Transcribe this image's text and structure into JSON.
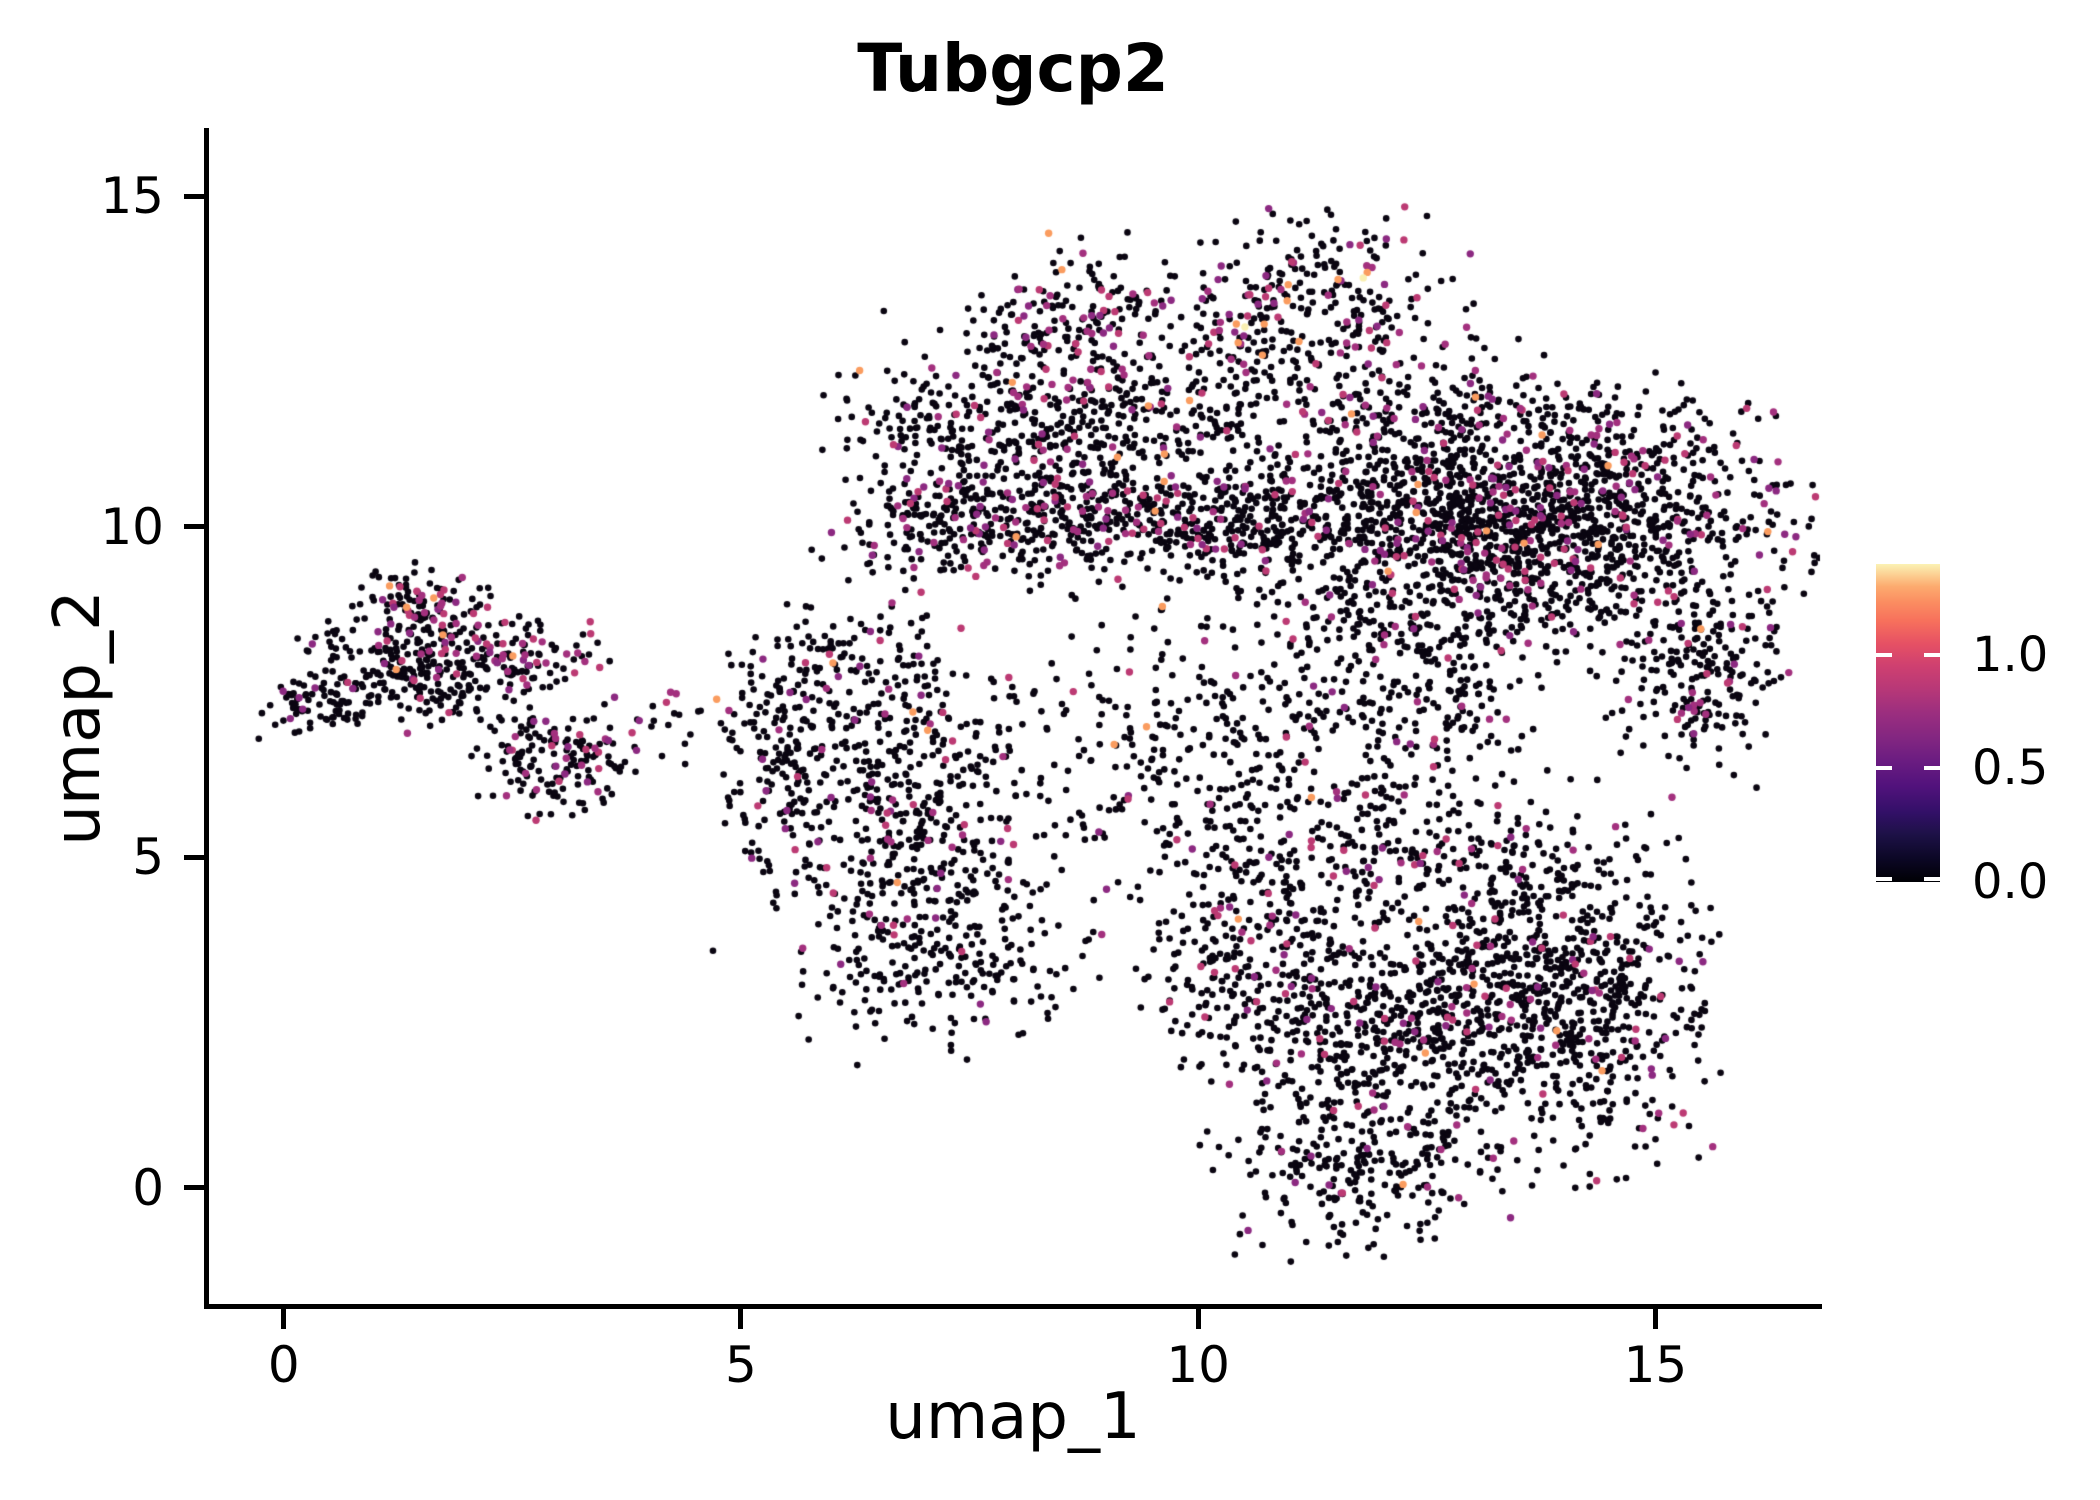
{
  "title": "Tubgcp2",
  "chart_data": {
    "type": "scatter",
    "title": "Tubgcp2",
    "xlabel": "umap_1",
    "ylabel": "umap_2",
    "xlim": [
      -0.85,
      16.8
    ],
    "ylim": [
      -1.8,
      16.0
    ],
    "xticks": [
      "0",
      "5",
      "10",
      "15"
    ],
    "xtick_values": [
      0,
      5,
      10,
      15
    ],
    "yticks": [
      "0",
      "5",
      "10",
      "15"
    ],
    "ytick_values": [
      0,
      5,
      10,
      15
    ],
    "grid": false,
    "legend_position": "right",
    "colorbar": {
      "ticks": [
        "0.0",
        "0.5",
        "1.0"
      ],
      "tick_values": [
        0.0,
        0.5,
        1.0
      ],
      "range": [
        0.0,
        1.4
      ],
      "colormap": "magma",
      "stops": [
        {
          "p": 0.0,
          "c": "#000004"
        },
        {
          "p": 0.07,
          "c": "#0b0724"
        },
        {
          "p": 0.15,
          "c": "#1d1147"
        },
        {
          "p": 0.22,
          "c": "#331068"
        },
        {
          "p": 0.3,
          "c": "#51127c"
        },
        {
          "p": 0.38,
          "c": "#6a1c81"
        },
        {
          "p": 0.45,
          "c": "#822681"
        },
        {
          "p": 0.53,
          "c": "#9b2e7f"
        },
        {
          "p": 0.6,
          "c": "#b53778"
        },
        {
          "p": 0.68,
          "c": "#cf4070"
        },
        {
          "p": 0.75,
          "c": "#e65164"
        },
        {
          "p": 0.82,
          "c": "#f7705c"
        },
        {
          "p": 0.88,
          "c": "#fb8d61"
        },
        {
          "p": 0.93,
          "c": "#fcab6f"
        },
        {
          "p": 1.0,
          "c": "#fbf2b4"
        }
      ]
    },
    "palette": {
      "zero_expression": "#0a0511",
      "mid_expression": [
        "#8c2981",
        "#a3307e",
        "#bc3a73"
      ],
      "high_expression": "#fa9c5f",
      "top_expression": "#f9efb2"
    },
    "point_radius_px": 3.3,
    "seed": 1337,
    "clusters": [
      {
        "name": "left-tip",
        "cx": 0.38,
        "cy": 7.3,
        "sx": 0.28,
        "sy": 0.22,
        "n": 70,
        "fm": 0.14,
        "fh": 0.0
      },
      {
        "name": "left-main",
        "cx": 1.15,
        "cy": 7.9,
        "sx": 0.45,
        "sy": 0.4,
        "n": 150,
        "fm": 0.1,
        "fh": 0.005
      },
      {
        "name": "left-top-arm",
        "cx": 1.55,
        "cy": 8.75,
        "sx": 0.35,
        "sy": 0.3,
        "n": 110,
        "fm": 0.22,
        "fh": 0.05
      },
      {
        "name": "left-right-arm",
        "cx": 2.45,
        "cy": 8.1,
        "sx": 0.5,
        "sy": 0.25,
        "n": 120,
        "fm": 0.25,
        "fh": 0.008
      },
      {
        "name": "left-lower-lobe",
        "cx": 3.0,
        "cy": 6.45,
        "sx": 0.42,
        "sy": 0.38,
        "n": 160,
        "fm": 0.12,
        "fh": 0.004
      },
      {
        "name": "left-bridge",
        "cx": 1.9,
        "cy": 7.5,
        "sx": 0.5,
        "sy": 0.3,
        "n": 80,
        "fm": 0.08,
        "fh": 0.0
      },
      {
        "name": "left-sparse-tail",
        "cx": 3.9,
        "cy": 7.1,
        "sx": 0.4,
        "sy": 0.3,
        "n": 14,
        "fm": 0.15,
        "fh": 0.0
      },
      {
        "name": "left-ne-dots",
        "cx": 4.35,
        "cy": 6.9,
        "sx": 0.25,
        "sy": 0.3,
        "n": 6,
        "fm": 0.1,
        "fh": 0.0
      },
      {
        "name": "midleft-west-edge",
        "cx": 5.45,
        "cy": 6.6,
        "sx": 0.3,
        "sy": 1.0,
        "n": 130,
        "fm": 0.12,
        "fh": 0.004
      },
      {
        "name": "midleft-main",
        "cx": 6.7,
        "cy": 5.9,
        "sx": 0.85,
        "sy": 1.05,
        "n": 430,
        "fm": 0.07,
        "fh": 0.005
      },
      {
        "name": "midleft-north",
        "cx": 6.2,
        "cy": 7.9,
        "sx": 0.55,
        "sy": 0.45,
        "n": 90,
        "fm": 0.1,
        "fh": 0.0
      },
      {
        "name": "midleft-south",
        "cx": 7.2,
        "cy": 3.6,
        "sx": 0.75,
        "sy": 0.75,
        "n": 260,
        "fm": 0.07,
        "fh": 0.003
      },
      {
        "name": "topmid-peak",
        "cx": 8.7,
        "cy": 13.1,
        "sx": 0.6,
        "sy": 0.6,
        "n": 170,
        "fm": 0.2,
        "fh": 0.03
      },
      {
        "name": "topmid-main",
        "cx": 8.4,
        "cy": 11.5,
        "sx": 1.05,
        "sy": 0.75,
        "n": 480,
        "fm": 0.13,
        "fh": 0.015
      },
      {
        "name": "topmid-band",
        "cx": 8.5,
        "cy": 10.0,
        "sx": 1.15,
        "sy": 0.38,
        "n": 400,
        "fm": 0.15,
        "fh": 0.008
      },
      {
        "name": "topmid-west",
        "cx": 7.2,
        "cy": 10.6,
        "sx": 0.5,
        "sy": 0.9,
        "n": 130,
        "fm": 0.12,
        "fh": 0.0
      },
      {
        "name": "topright",
        "cx": 11.3,
        "cy": 13.4,
        "sx": 0.75,
        "sy": 0.6,
        "n": 240,
        "fm": 0.18,
        "fh": 0.035,
        "ft": 0.01
      },
      {
        "name": "topright-saddle",
        "cx": 10.4,
        "cy": 12.3,
        "sx": 0.6,
        "sy": 0.8,
        "n": 120,
        "fm": 0.1,
        "fh": 0.01
      },
      {
        "name": "band-bridge",
        "cx": 10.7,
        "cy": 10.1,
        "sx": 0.7,
        "sy": 0.45,
        "n": 200,
        "fm": 0.12,
        "fh": 0.01
      },
      {
        "name": "right-upper-west",
        "cx": 12.4,
        "cy": 11.4,
        "sx": 0.95,
        "sy": 0.65,
        "n": 380,
        "fm": 0.12,
        "fh": 0.008
      },
      {
        "name": "right-upper-east",
        "cx": 14.4,
        "cy": 11.0,
        "sx": 0.85,
        "sy": 0.6,
        "n": 300,
        "fm": 0.12,
        "fh": 0.004
      },
      {
        "name": "right-band",
        "cx": 13.4,
        "cy": 9.9,
        "sx": 1.45,
        "sy": 0.55,
        "n": 1050,
        "fm": 0.1,
        "fh": 0.004
      },
      {
        "name": "right-band-fringe",
        "cx": 13.2,
        "cy": 8.7,
        "sx": 1.3,
        "sy": 0.4,
        "n": 260,
        "fm": 0.1,
        "fh": 0.0
      },
      {
        "name": "right-east-blob",
        "cx": 15.5,
        "cy": 7.7,
        "sx": 0.5,
        "sy": 0.75,
        "n": 220,
        "fm": 0.12,
        "fh": 0.005
      },
      {
        "name": "mid-scatter",
        "cx": 10.2,
        "cy": 6.7,
        "sx": 1.45,
        "sy": 1.05,
        "n": 380,
        "fm": 0.06,
        "fh": 0.005
      },
      {
        "name": "mid-scatter-east",
        "cx": 12.4,
        "cy": 7.3,
        "sx": 0.8,
        "sy": 0.75,
        "n": 170,
        "fm": 0.08,
        "fh": 0.0
      },
      {
        "name": "br-top-fringe",
        "cx": 12.4,
        "cy": 5.1,
        "sx": 1.2,
        "sy": 0.5,
        "n": 200,
        "fm": 0.08,
        "fh": 0.0
      },
      {
        "name": "br-main",
        "cx": 12.6,
        "cy": 2.7,
        "sx": 1.25,
        "sy": 1.15,
        "n": 850,
        "fm": 0.08,
        "fh": 0.008
      },
      {
        "name": "br-east",
        "cx": 14.1,
        "cy": 2.9,
        "sx": 0.75,
        "sy": 1.25,
        "n": 480,
        "fm": 0.09,
        "fh": 0.004
      },
      {
        "name": "br-west-arm",
        "cx": 10.4,
        "cy": 3.8,
        "sx": 0.5,
        "sy": 0.95,
        "n": 190,
        "fm": 0.12,
        "fh": 0.008
      },
      {
        "name": "br-bottom",
        "cx": 11.7,
        "cy": 0.3,
        "sx": 0.75,
        "sy": 0.6,
        "n": 210,
        "fm": 0.06,
        "fh": 0.0
      },
      {
        "name": "br-gap-sparse",
        "cx": 11.4,
        "cy": 2.2,
        "sx": 0.6,
        "sy": 0.8,
        "n": 60,
        "fm": 0.08,
        "fh": 0.0
      }
    ]
  }
}
